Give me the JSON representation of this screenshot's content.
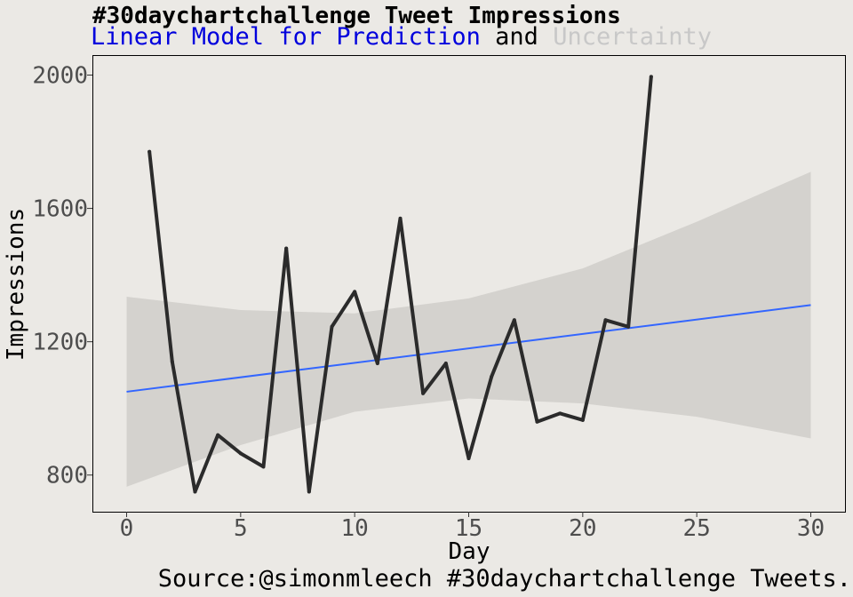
{
  "title": "#30daychartchallenge Tweet Impressions",
  "subtitle": {
    "part1": "Linear Model for Prediction",
    "part2": " and ",
    "part3": "Uncertainty"
  },
  "caption": "Source:@simonmleech #30daychartchallenge Tweets.",
  "colors": {
    "background": "#ebe9e5",
    "model": "#3366ff",
    "model_label": "#0000dd",
    "uncertainty": "#c8c8c8",
    "band": "#d4d2ce",
    "line": "#2b2b2b"
  },
  "chart_data": {
    "type": "line",
    "title": "#30daychartchallenge Tweet Impressions",
    "xlabel": "Day",
    "ylabel": "Impressions",
    "xlim": [
      -1.5,
      31.5
    ],
    "ylim": [
      690,
      2060
    ],
    "xticks": [
      0,
      5,
      10,
      15,
      20,
      25,
      30
    ],
    "yticks": [
      800,
      1200,
      1600,
      2000
    ],
    "series": [
      {
        "name": "Impressions",
        "x": [
          1,
          2,
          3,
          4,
          5,
          6,
          7,
          8,
          9,
          10,
          11,
          12,
          13,
          14,
          15,
          16,
          17,
          18,
          19,
          20,
          21,
          22,
          23
        ],
        "values": [
          1770,
          1140,
          750,
          920,
          865,
          825,
          1480,
          750,
          1245,
          1350,
          1135,
          1570,
          1045,
          1135,
          850,
          1095,
          1265,
          960,
          985,
          965,
          1265,
          1245,
          1995
        ]
      }
    ],
    "model": {
      "name": "Linear Model",
      "x": [
        0,
        30
      ],
      "values": [
        1050,
        1310
      ]
    },
    "uncertainty": {
      "x": [
        0,
        5,
        10,
        15,
        20,
        25,
        30
      ],
      "upper": [
        1335,
        1295,
        1285,
        1330,
        1420,
        1560,
        1710
      ],
      "lower": [
        765,
        890,
        990,
        1030,
        1015,
        975,
        910
      ]
    }
  }
}
